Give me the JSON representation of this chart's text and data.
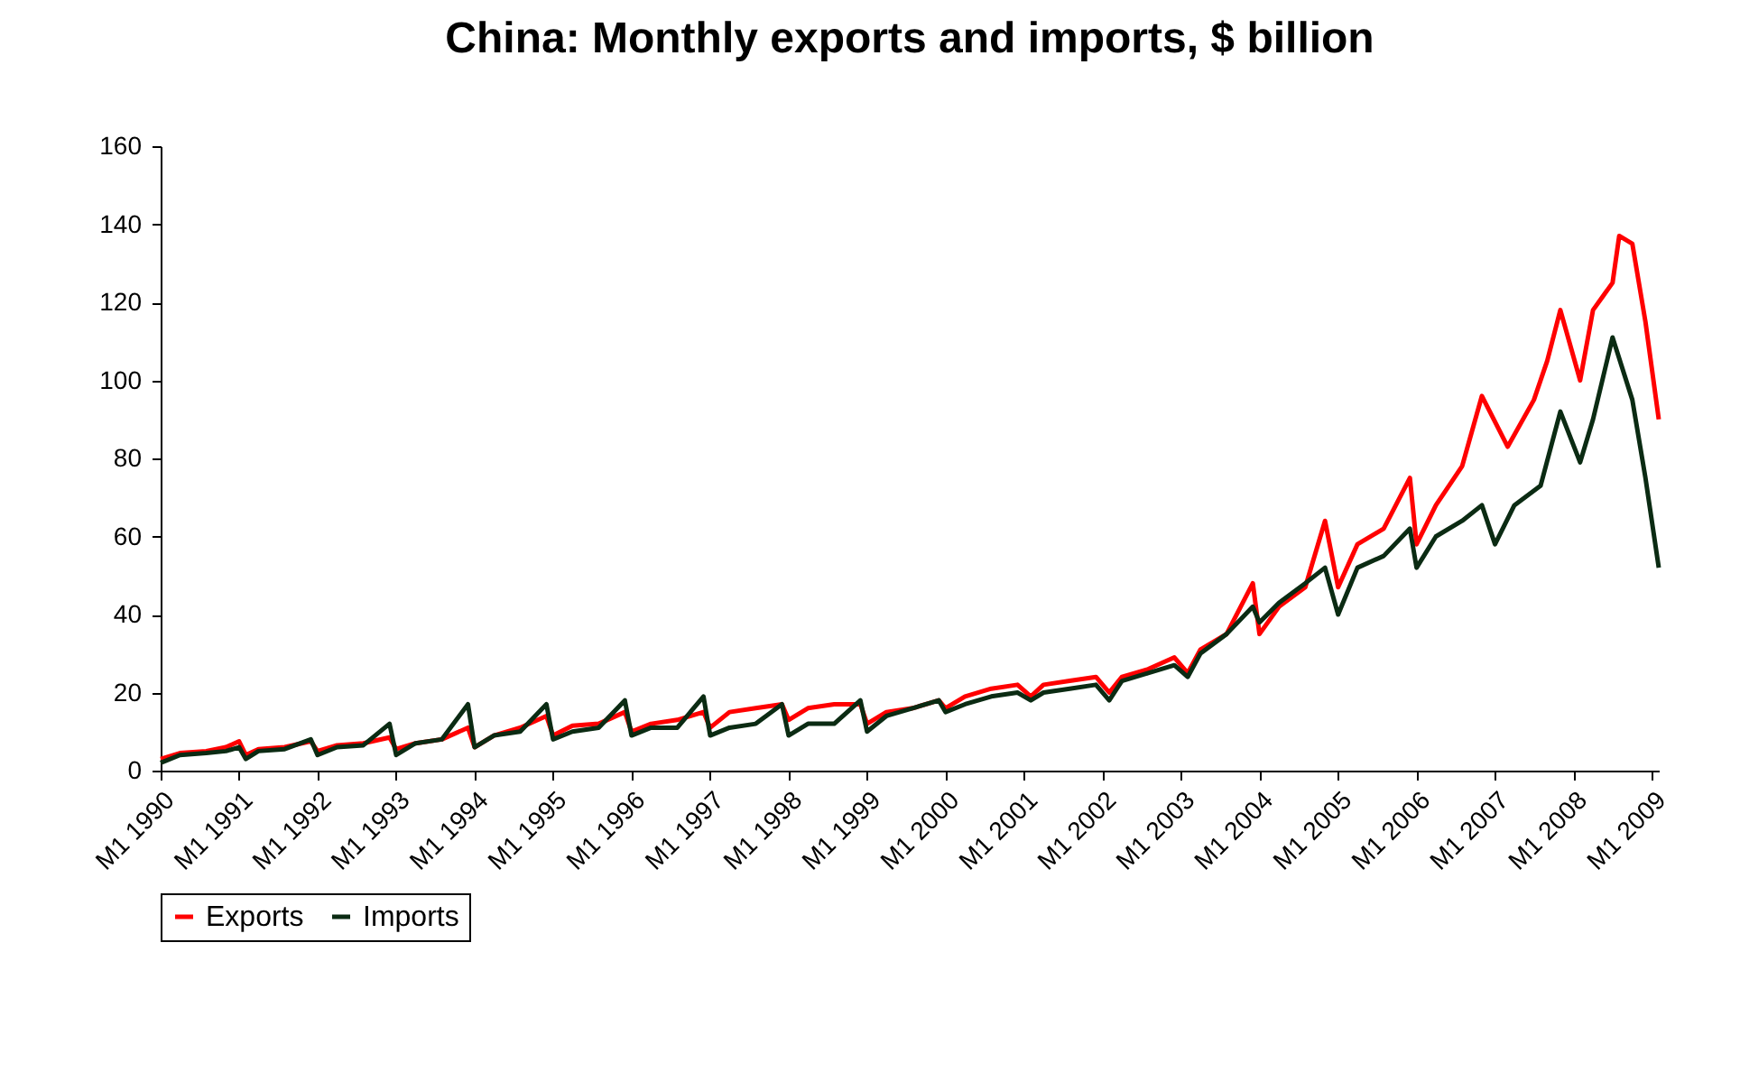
{
  "chart_data": {
    "type": "line",
    "title": "China: Monthly exports and imports, $ billion",
    "xlim": [
      "1990-01",
      "2009-02"
    ],
    "xticks": [
      {
        "value": "1990-01",
        "label": "M1 1990"
      },
      {
        "value": "1991-01",
        "label": "M1 1991"
      },
      {
        "value": "1992-01",
        "label": "M1 1992"
      },
      {
        "value": "1993-01",
        "label": "M1 1993"
      },
      {
        "value": "1994-01",
        "label": "M1 1994"
      },
      {
        "value": "1995-01",
        "label": "M1 1995"
      },
      {
        "value": "1996-01",
        "label": "M1 1996"
      },
      {
        "value": "1997-01",
        "label": "M1 1997"
      },
      {
        "value": "1998-01",
        "label": "M1 1998"
      },
      {
        "value": "1999-01",
        "label": "M1 1999"
      },
      {
        "value": "2000-01",
        "label": "M1 2000"
      },
      {
        "value": "2001-01",
        "label": "M1 2001"
      },
      {
        "value": "2002-01",
        "label": "M1 2002"
      },
      {
        "value": "2003-01",
        "label": "M1 2003"
      },
      {
        "value": "2004-01",
        "label": "M1 2004"
      },
      {
        "value": "2005-01",
        "label": "M1 2005"
      },
      {
        "value": "2006-01",
        "label": "M1 2006"
      },
      {
        "value": "2007-01",
        "label": "M1 2007"
      },
      {
        "value": "2008-01",
        "label": "M1 2008"
      },
      {
        "value": "2009-01",
        "label": "M1 2009"
      }
    ],
    "ylim": [
      0,
      160
    ],
    "yticks": [
      0,
      20,
      40,
      60,
      80,
      100,
      120,
      140,
      160
    ],
    "grid": false,
    "legend": "bottom",
    "marker": "none",
    "line_style": "solid",
    "series": [
      {
        "name": "Exports",
        "color": "#ff0000",
        "x": [
          "1990-01",
          "1990-04",
          "1990-08",
          "1990-11",
          "1991-01",
          "1991-02",
          "1991-04",
          "1991-08",
          "1991-12",
          "1992-01",
          "1992-04",
          "1992-08",
          "1992-12",
          "1993-01",
          "1993-04",
          "1993-08",
          "1993-12",
          "1994-01",
          "1994-04",
          "1994-08",
          "1994-12",
          "1995-01",
          "1995-04",
          "1995-08",
          "1995-12",
          "1996-01",
          "1996-04",
          "1996-08",
          "1996-12",
          "1997-01",
          "1997-04",
          "1997-08",
          "1997-12",
          "1998-01",
          "1998-04",
          "1998-08",
          "1998-12",
          "1999-01",
          "1999-04",
          "1999-08",
          "1999-12",
          "2000-01",
          "2000-04",
          "2000-08",
          "2000-12",
          "2001-02",
          "2001-04",
          "2001-08",
          "2001-12",
          "2002-02",
          "2002-04",
          "2002-08",
          "2002-12",
          "2003-02",
          "2003-04",
          "2003-08",
          "2003-12",
          "2004-01",
          "2004-04",
          "2004-08",
          "2004-11",
          "2005-01",
          "2005-04",
          "2005-08",
          "2005-12",
          "2006-01",
          "2006-04",
          "2006-08",
          "2006-11",
          "2007-03",
          "2007-07",
          "2007-09",
          "2007-11",
          "2008-02",
          "2008-04",
          "2008-07",
          "2008-08",
          "2008-10",
          "2008-12",
          "2009-02"
        ],
        "values": [
          3,
          4.5,
          5,
          6,
          7.5,
          4,
          5.5,
          6,
          7.5,
          5,
          6.5,
          7,
          8.5,
          5.5,
          7,
          8,
          11,
          6,
          9,
          11,
          14,
          9,
          11.5,
          12,
          15,
          10,
          12,
          13,
          15,
          11,
          15,
          16,
          17,
          13,
          16,
          17,
          17,
          12,
          15,
          16,
          18,
          16,
          19,
          21,
          22,
          19,
          22,
          23,
          24,
          20,
          24,
          26,
          29,
          25,
          31,
          35,
          48,
          35,
          42,
          47,
          64,
          47,
          58,
          62,
          75,
          58,
          68,
          78,
          96,
          83,
          95,
          105,
          118,
          100,
          118,
          125,
          137,
          135,
          115,
          90
        ]
      },
      {
        "name": "Imports",
        "color": "#0b2b13",
        "x": [
          "1990-01",
          "1990-04",
          "1990-08",
          "1990-11",
          "1991-01",
          "1991-02",
          "1991-04",
          "1991-08",
          "1991-12",
          "1992-01",
          "1992-04",
          "1992-08",
          "1992-12",
          "1993-01",
          "1993-04",
          "1993-08",
          "1993-12",
          "1994-01",
          "1994-04",
          "1994-08",
          "1994-12",
          "1995-01",
          "1995-04",
          "1995-08",
          "1995-12",
          "1996-01",
          "1996-04",
          "1996-08",
          "1996-12",
          "1997-01",
          "1997-04",
          "1997-08",
          "1997-12",
          "1998-01",
          "1998-04",
          "1998-08",
          "1998-12",
          "1999-01",
          "1999-04",
          "1999-08",
          "1999-12",
          "2000-01",
          "2000-04",
          "2000-08",
          "2000-12",
          "2001-02",
          "2001-04",
          "2001-08",
          "2001-12",
          "2002-02",
          "2002-04",
          "2002-08",
          "2002-12",
          "2003-02",
          "2003-04",
          "2003-08",
          "2003-12",
          "2004-01",
          "2004-04",
          "2004-08",
          "2004-11",
          "2005-01",
          "2005-04",
          "2005-08",
          "2005-12",
          "2006-01",
          "2006-04",
          "2006-08",
          "2006-11",
          "2007-01",
          "2007-04",
          "2007-08",
          "2007-11",
          "2008-02",
          "2008-04",
          "2008-07",
          "2008-10",
          "2008-12",
          "2009-02"
        ],
        "values": [
          2,
          4,
          4.5,
          5,
          6,
          3,
          5,
          5.5,
          8,
          4,
          6,
          6.5,
          12,
          4,
          7,
          8,
          17,
          6,
          9,
          10,
          17,
          8,
          10,
          11,
          18,
          9,
          11,
          11,
          19,
          9,
          11,
          12,
          17,
          9,
          12,
          12,
          18,
          10,
          14,
          16,
          18,
          15,
          17,
          19,
          20,
          18,
          20,
          21,
          22,
          18,
          23,
          25,
          27,
          24,
          30,
          35,
          42,
          38,
          43,
          48,
          52,
          40,
          52,
          55,
          62,
          52,
          60,
          64,
          68,
          58,
          68,
          73,
          92,
          79,
          90,
          111,
          95,
          75,
          52
        ]
      }
    ]
  }
}
